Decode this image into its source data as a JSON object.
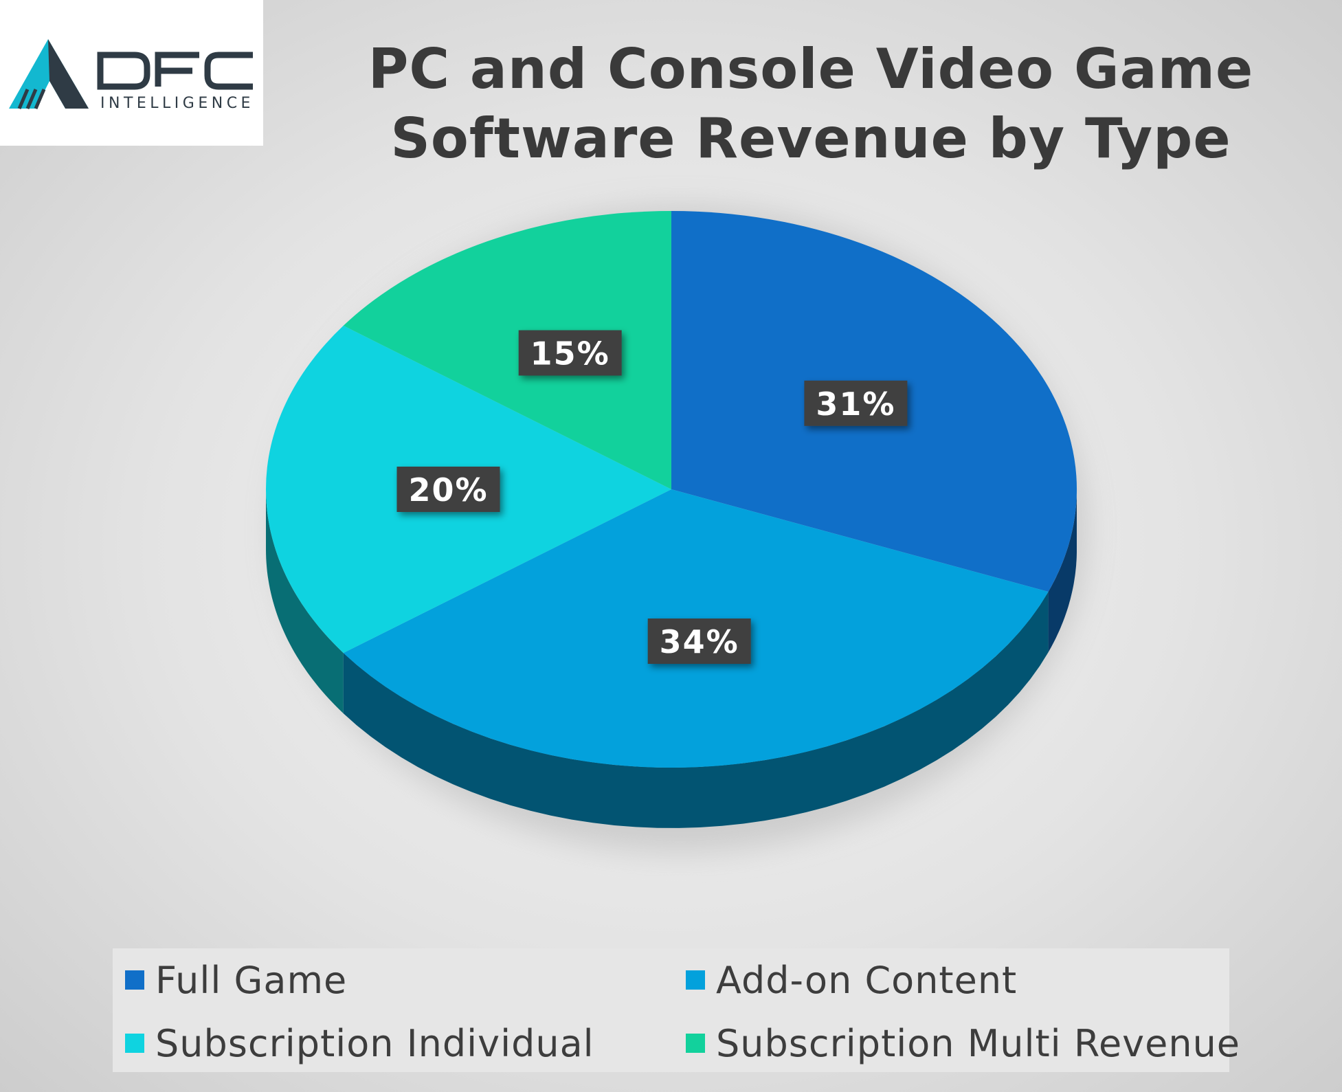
{
  "logo": {
    "name": "DFC",
    "subname": "INTELLIGENCE"
  },
  "title_lines": [
    "PC and Console Video Game",
    "Software Revenue by Type"
  ],
  "chart_data": {
    "type": "pie",
    "style": "3d",
    "title": "PC and Console Video Game Software Revenue by Type",
    "series": [
      {
        "name": "Full Game",
        "value": 31,
        "label": "31%",
        "color": "#106fc8"
      },
      {
        "name": "Add-on Content",
        "value": 34,
        "label": "34%",
        "color": "#03a1dc"
      },
      {
        "name": "Subscription Individual",
        "value": 20,
        "label": "20%",
        "color": "#0fd3e0"
      },
      {
        "name": "Subscription Multi Revenue",
        "value": 15,
        "label": "15%",
        "color": "#12d19c"
      }
    ],
    "legend_position": "bottom",
    "data_label_style": "dark box, white bold text"
  }
}
